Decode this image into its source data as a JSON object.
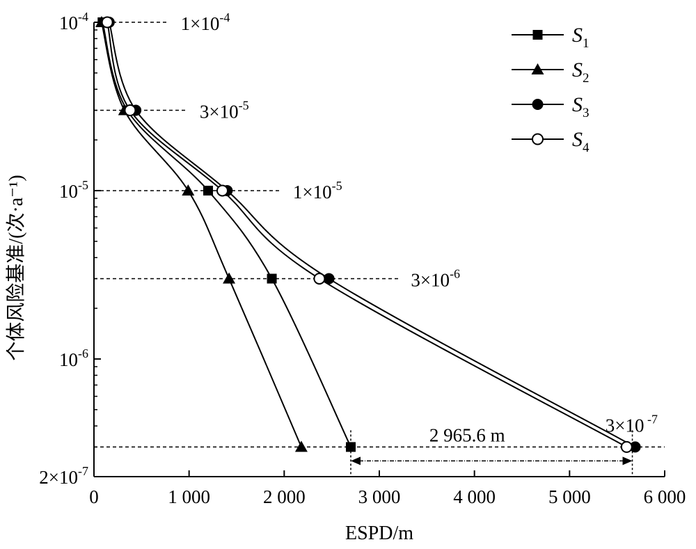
{
  "chart_data": {
    "type": "line",
    "xlabel": "ESPD/m",
    "ylabel": "个体风险基准/(次·a⁻¹)",
    "xlim": [
      0,
      6000
    ],
    "ylim": [
      2e-07,
      0.0001
    ],
    "yscale": "log",
    "grid": false,
    "legend_position": "top-right",
    "x_ticks": [
      0,
      1000,
      2000,
      3000,
      4000,
      5000,
      6000
    ],
    "x_tick_labels": [
      "0",
      "1 000",
      "2 000",
      "3 000",
      "4 000",
      "5 000",
      "6 000"
    ],
    "y_ticks": [
      {
        "value": 0.0001,
        "base": "10",
        "exp": "-4"
      },
      {
        "value": 1e-05,
        "base": "10",
        "exp": "-5"
      },
      {
        "value": 1e-06,
        "base": "10",
        "exp": "-6"
      },
      {
        "value": 2e-07,
        "base": "2×10",
        "exp": "-7"
      }
    ],
    "reference_lines": [
      {
        "y": 0.0001,
        "x_end": 780,
        "label_base": "1×10",
        "label_exp": "-4"
      },
      {
        "y": 3e-05,
        "x_end": 980,
        "label_base": "3×10",
        "label_exp": "-5"
      },
      {
        "y": 1e-05,
        "x_end": 1960,
        "label_base": "1×10",
        "label_exp": "-5"
      },
      {
        "y": 3e-06,
        "x_end": 3200,
        "label_base": "3×10",
        "label_exp": "-6"
      },
      {
        "y": 3e-07,
        "x_end": 6000,
        "label_base": "3×10",
        "label_exp": " -7"
      }
    ],
    "series": [
      {
        "name": "S",
        "subscript": "1",
        "marker": "square",
        "points": [
          [
            90,
            0.0001
          ],
          [
            350,
            3e-05
          ],
          [
            1200,
            1e-05
          ],
          [
            1870,
            3e-06
          ],
          [
            2700,
            3e-07
          ]
        ]
      },
      {
        "name": "S",
        "subscript": "2",
        "marker": "triangle",
        "points": [
          [
            80,
            0.0001
          ],
          [
            320,
            3e-05
          ],
          [
            990,
            1e-05
          ],
          [
            1420,
            3e-06
          ],
          [
            2180,
            3e-07
          ]
        ]
      },
      {
        "name": "S",
        "subscript": "3",
        "marker": "filled-circle",
        "points": [
          [
            160,
            0.0001
          ],
          [
            440,
            3e-05
          ],
          [
            1400,
            1e-05
          ],
          [
            2470,
            3e-06
          ],
          [
            5690,
            3e-07
          ]
        ]
      },
      {
        "name": "S",
        "subscript": "4",
        "marker": "open-circle",
        "points": [
          [
            140,
            0.0001
          ],
          [
            380,
            3e-05
          ],
          [
            1350,
            1e-05
          ],
          [
            2370,
            3e-06
          ],
          [
            5600,
            3e-07
          ]
        ]
      }
    ],
    "annotations": [
      {
        "text": "2 965.6 m",
        "from_x": 2700,
        "to_x": 5660,
        "y": 3e-07
      }
    ]
  }
}
